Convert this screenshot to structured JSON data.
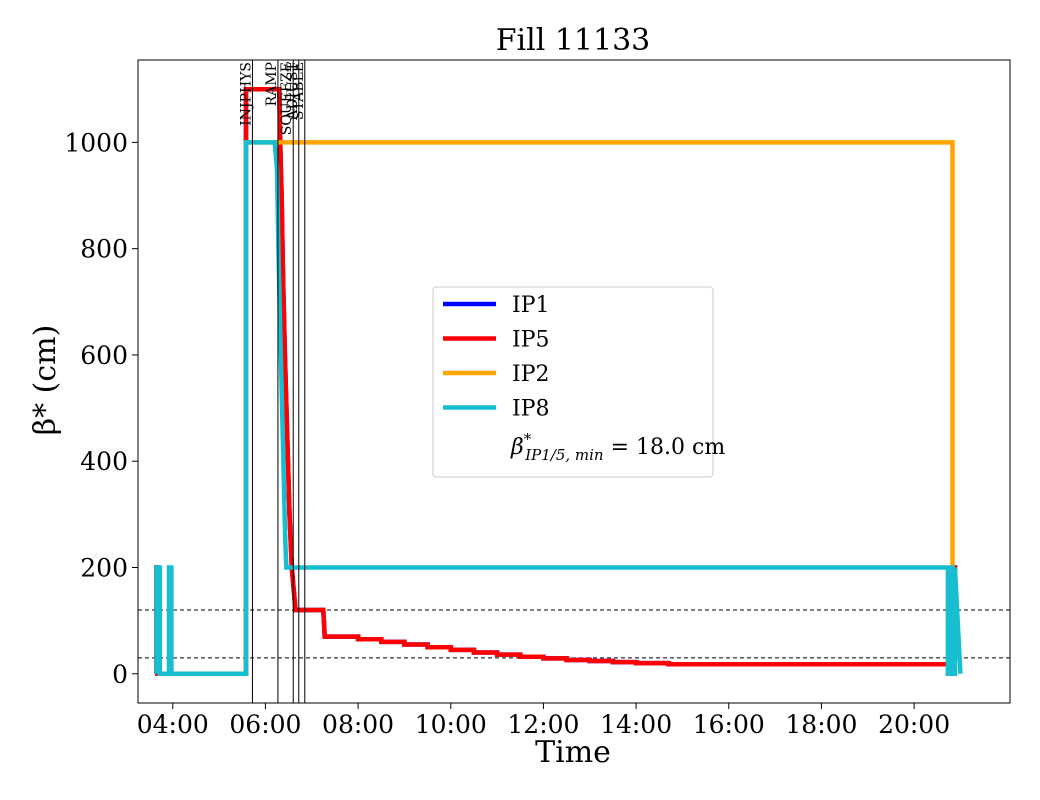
{
  "chart_data": {
    "type": "line",
    "title": "Fill 11133",
    "xlabel": "Time",
    "ylabel": "β* (cm)",
    "xlim": [
      3.25,
      22.07
    ],
    "ylim": [
      -55,
      1155
    ],
    "x_ticks": [
      4,
      6,
      8,
      10,
      12,
      14,
      16,
      18,
      20
    ],
    "x_tick_labels": [
      "04:00",
      "06:00",
      "08:00",
      "10:00",
      "12:00",
      "14:00",
      "16:00",
      "18:00",
      "20:00"
    ],
    "y_ticks": [
      0,
      200,
      400,
      600,
      800,
      1000
    ],
    "y_tick_labels": [
      "0",
      "200",
      "400",
      "600",
      "800",
      "1000"
    ],
    "grid": false,
    "legend_position": "center",
    "reference_lines": [
      {
        "y": 120,
        "style": "dashed"
      },
      {
        "y": 30,
        "style": "dashed"
      }
    ],
    "phases": [
      {
        "label": "INJPHYS",
        "x": 5.72
      },
      {
        "label": "RAMP",
        "x": 6.27
      },
      {
        "label": "SQUEEZE",
        "x": 6.6
      },
      {
        "label": "ADJUST",
        "x": 6.72
      },
      {
        "label": "STABLE",
        "x": 6.85
      }
    ],
    "series": [
      {
        "name": "IP1",
        "color": "#0000ff",
        "x": [
          3.65,
          3.65,
          3.67,
          3.67,
          5.58,
          5.58,
          6.3,
          6.32,
          6.35,
          6.38,
          6.42,
          6.47,
          6.52,
          6.57,
          6.62,
          6.65,
          7.25,
          7.28,
          8.0,
          8.0,
          8.5,
          8.5,
          9.0,
          9.0,
          9.5,
          9.5,
          10.0,
          10.0,
          10.5,
          10.5,
          11.0,
          11.0,
          11.5,
          11.5,
          12.0,
          12.0,
          12.5,
          12.5,
          13.0,
          13.0,
          13.5,
          13.5,
          14.0,
          14.0,
          14.7,
          14.7,
          20.75,
          20.75,
          20.83,
          20.83,
          20.93
        ],
        "y": [
          0,
          200,
          200,
          0,
          0,
          1100,
          1100,
          1000,
          900,
          750,
          600,
          450,
          300,
          200,
          150,
          120,
          120,
          70,
          70,
          65,
          65,
          60,
          60,
          55,
          55,
          50,
          50,
          45,
          45,
          40,
          40,
          36,
          36,
          32,
          32,
          29,
          29,
          26,
          26,
          24,
          24,
          22,
          22,
          20,
          20,
          18,
          18,
          0,
          0,
          200,
          200
        ]
      },
      {
        "name": "IP5",
        "color": "#ff0000",
        "x": [
          3.65,
          3.65,
          3.67,
          3.67,
          5.58,
          5.58,
          6.3,
          6.32,
          6.35,
          6.38,
          6.42,
          6.47,
          6.52,
          6.57,
          6.62,
          6.65,
          7.25,
          7.28,
          8.0,
          8.0,
          8.5,
          8.5,
          9.0,
          9.0,
          9.5,
          9.5,
          10.0,
          10.0,
          10.5,
          10.5,
          11.0,
          11.0,
          11.5,
          11.5,
          12.0,
          12.0,
          12.5,
          12.5,
          13.0,
          13.0,
          13.5,
          13.5,
          14.0,
          14.0,
          14.7,
          14.7,
          20.75,
          20.75,
          20.83,
          20.83,
          20.93
        ],
        "y": [
          0,
          200,
          200,
          0,
          0,
          1100,
          1100,
          1000,
          900,
          750,
          600,
          450,
          300,
          200,
          150,
          120,
          120,
          70,
          70,
          65,
          65,
          60,
          60,
          55,
          55,
          50,
          50,
          45,
          45,
          40,
          40,
          36,
          36,
          32,
          32,
          29,
          29,
          26,
          26,
          24,
          24,
          22,
          22,
          20,
          20,
          18,
          18,
          0,
          0,
          200,
          200
        ]
      },
      {
        "name": "IP2",
        "color": "#ffa500",
        "x": [
          5.58,
          5.58,
          20.83,
          20.83,
          20.86
        ],
        "y": [
          0,
          1000,
          1000,
          200,
          200
        ]
      },
      {
        "name": "IP8",
        "color": "#17becf",
        "x": [
          3.65,
          3.65,
          3.72,
          3.72,
          3.92,
          3.92,
          3.97,
          3.97,
          5.58,
          5.58,
          6.1,
          6.2,
          6.25,
          6.28,
          6.32,
          6.36,
          6.4,
          6.43,
          6.45,
          20.73,
          20.73,
          20.78,
          20.78,
          20.83,
          20.83,
          20.88,
          20.88,
          21.0
        ],
        "y": [
          0,
          200,
          200,
          0,
          0,
          200,
          200,
          0,
          0,
          1000,
          1000,
          1000,
          950,
          800,
          650,
          500,
          350,
          250,
          200,
          200,
          0,
          0,
          200,
          200,
          0,
          0,
          200,
          0
        ]
      }
    ],
    "legend_entries": [
      {
        "label": "IP1",
        "color": "#0000ff"
      },
      {
        "label": "IP5",
        "color": "#ff0000"
      },
      {
        "label": "IP2",
        "color": "#ffa500"
      },
      {
        "label": "IP8",
        "color": "#17becf"
      }
    ],
    "legend_annotation": "β*IP1/5, min = 18.0 cm"
  }
}
